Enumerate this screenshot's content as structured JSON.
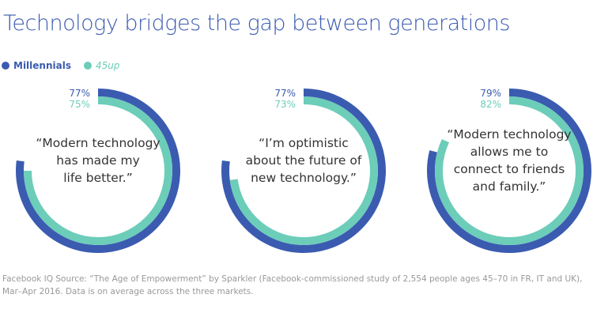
{
  "title": "Technology bridges the gap between generations",
  "chart_data": {
    "type": "radial-bar",
    "series": [
      {
        "name": "Millennials",
        "color": "#3b5bb0"
      },
      {
        "name": "45up",
        "color": "#6ccdb9"
      }
    ],
    "categories": [
      {
        "quote_lines": [
          "“Modern technology",
          "has made my",
          "life better.”"
        ],
        "values": [
          77,
          75
        ],
        "labels": [
          "77%",
          "75%"
        ]
      },
      {
        "quote_lines": [
          "“I’m optimistic",
          "about the future of",
          "new technology.”"
        ],
        "values": [
          77,
          73
        ],
        "labels": [
          "77%",
          "73%"
        ]
      },
      {
        "quote_lines": [
          "“Modern technology",
          "allows me to",
          "connect to friends",
          "and family.”"
        ],
        "values": [
          79,
          82
        ],
        "labels": [
          "79%",
          "82%"
        ]
      }
    ],
    "range": [
      0,
      100
    ]
  },
  "footnote": "Facebook IQ Source: “The Age of Empowerment” by Sparkler (Facebook-commissioned study of 2,554 people ages 45–70 in FR, IT and UK), Mar–Apr 2016. Data is on average across the three markets."
}
